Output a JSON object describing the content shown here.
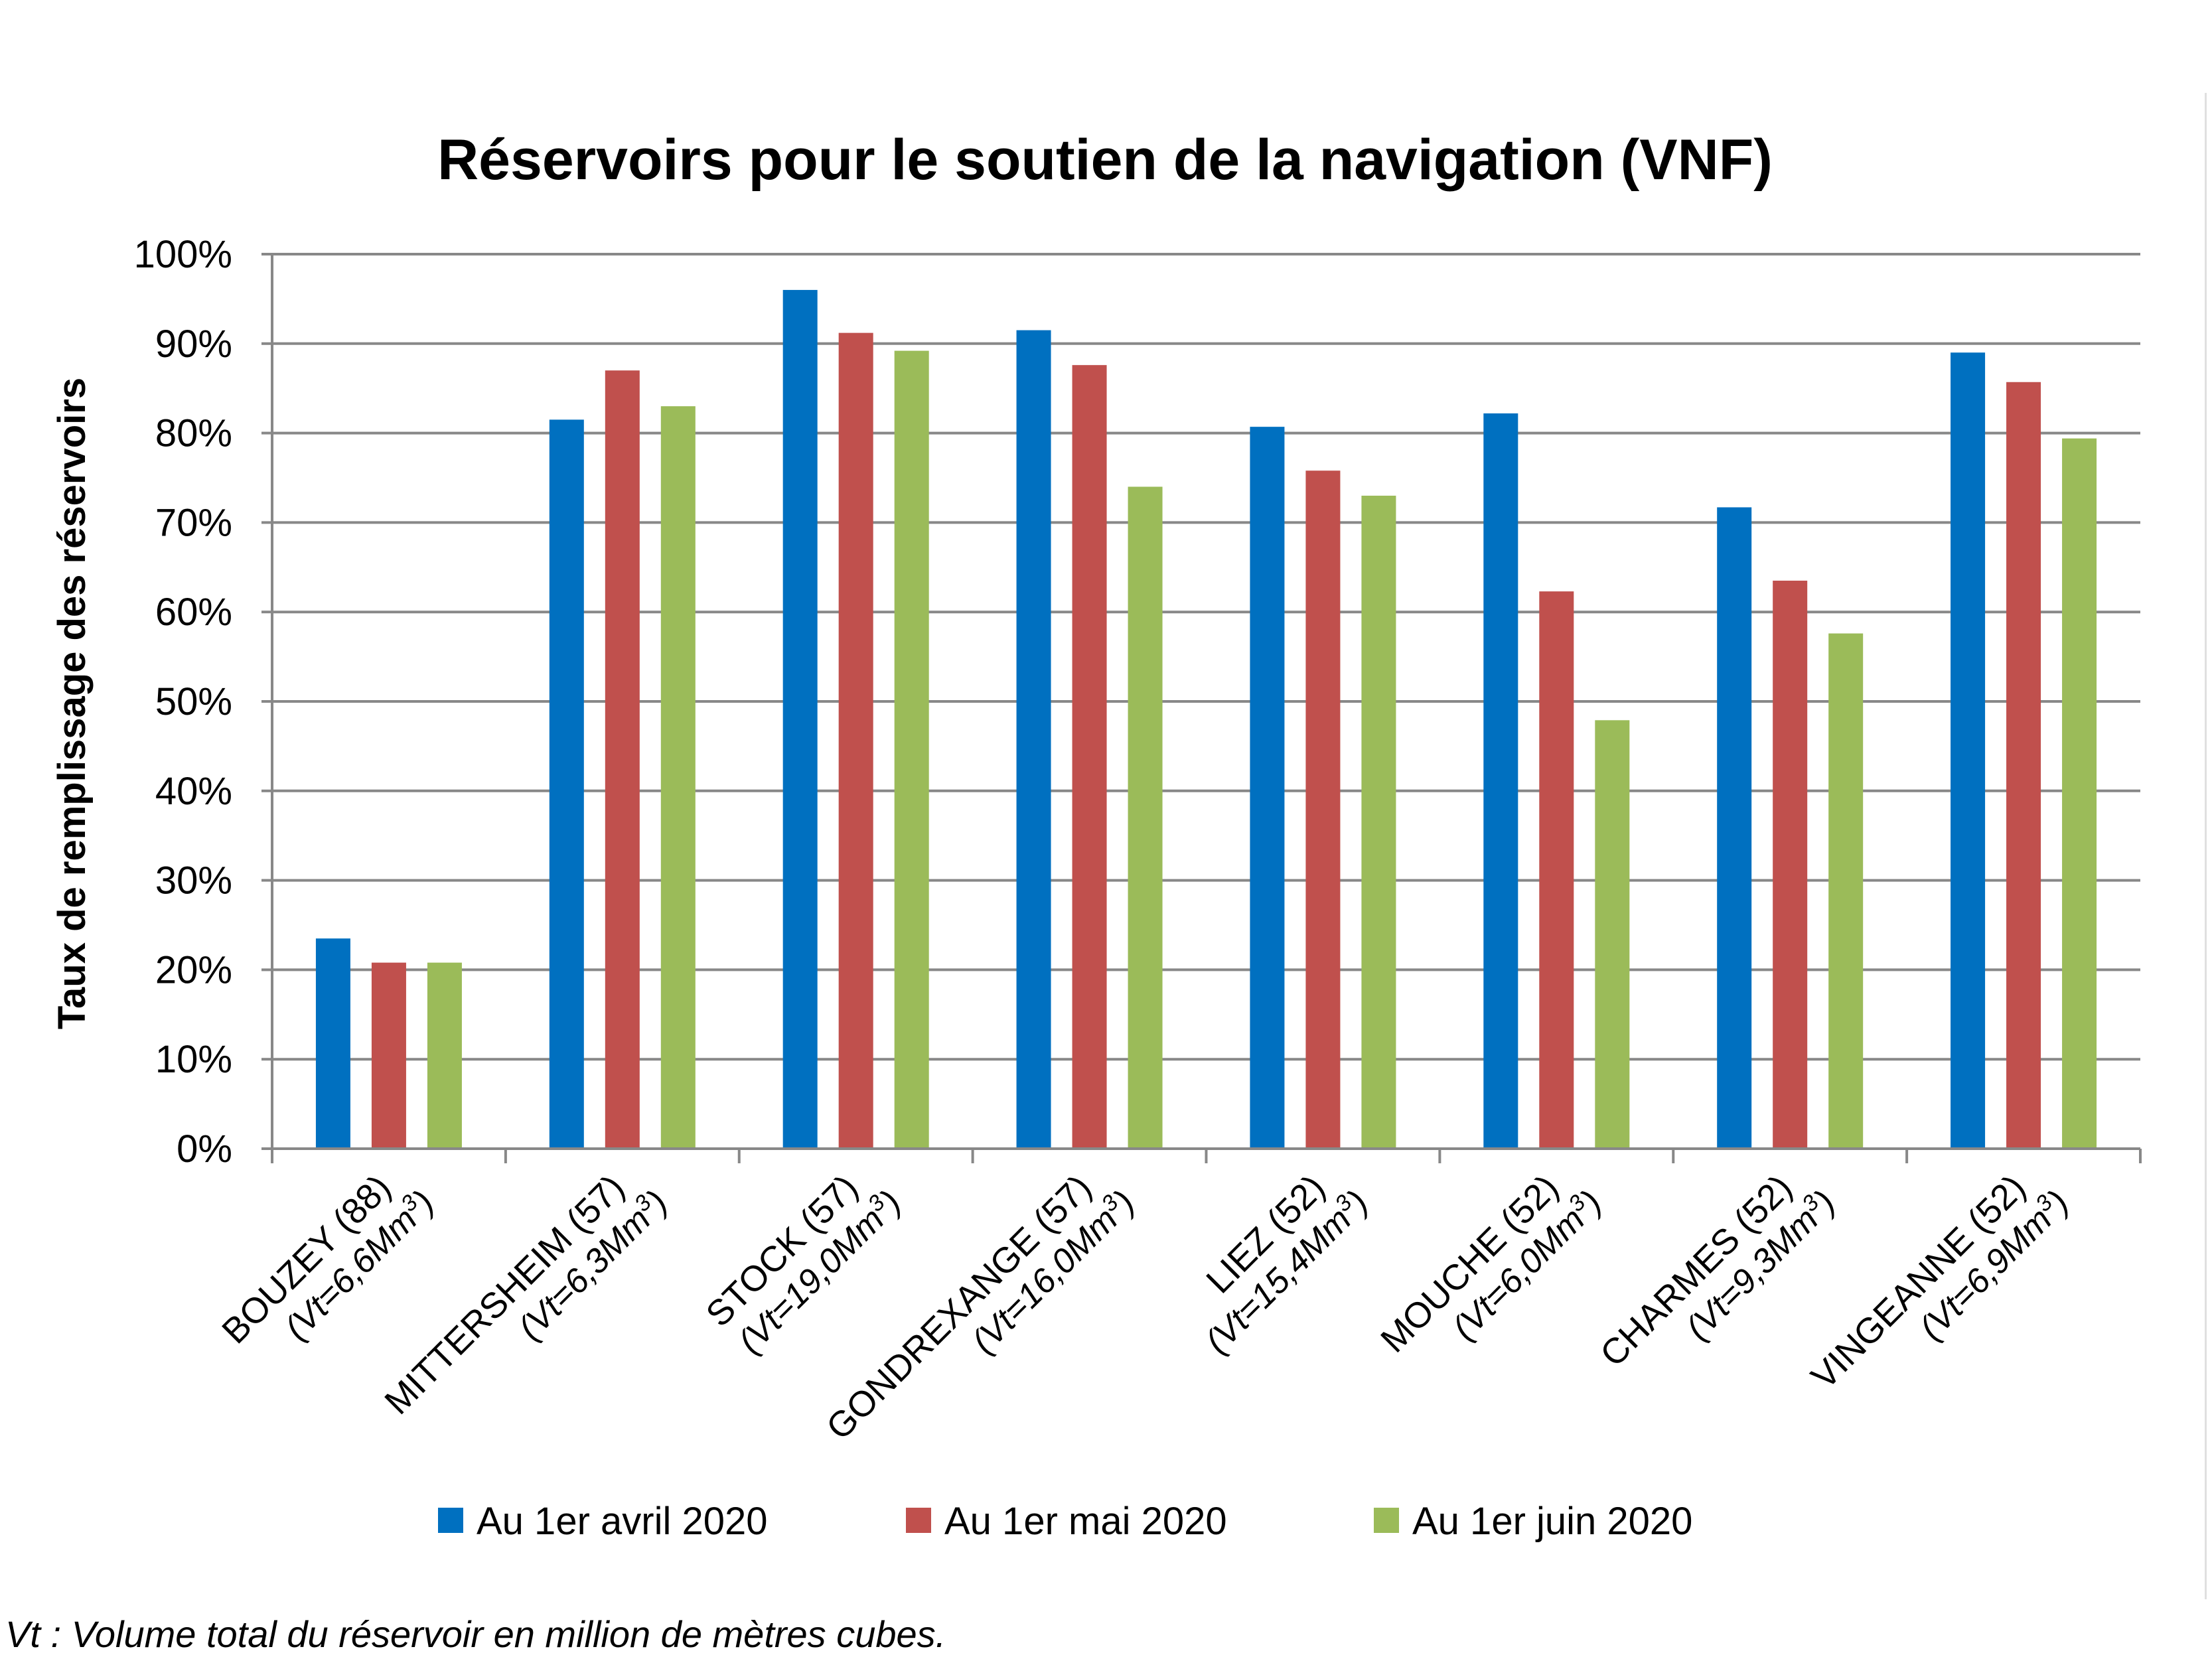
{
  "chart_data": {
    "type": "bar",
    "title": "Réservoirs pour le soutien de la navigation (VNF)",
    "ylabel": "Taux de remplissage des réservoirs",
    "xlabel": "",
    "ylim": [
      0,
      100
    ],
    "yticks": [
      "0%",
      "10%",
      "20%",
      "30%",
      "40%",
      "50%",
      "60%",
      "70%",
      "80%",
      "90%",
      "100%"
    ],
    "grid": true,
    "legend_position": "bottom",
    "categories": [
      {
        "name": "BOUZEY (88)",
        "sub": "(Vt=6,6Mm",
        "sup": "3",
        "close": ")"
      },
      {
        "name": "MITTERSHEIM (57)",
        "sub": "(Vt=6,3Mm",
        "sup": "3",
        "close": ")"
      },
      {
        "name": "STOCK (57)",
        "sub": "(Vt=19,0Mm",
        "sup": "3",
        "close": ")"
      },
      {
        "name": "GONDREXANGE (57)",
        "sub": "(Vt=16,0Mm",
        "sup": "3",
        "close": ")"
      },
      {
        "name": "LIEZ (52)",
        "sub": "(Vt=15,4Mm",
        "sup": "3",
        "close": ")"
      },
      {
        "name": "MOUCHE (52)",
        "sub": "(Vt=6,0Mm",
        "sup": "3",
        "close": ")"
      },
      {
        "name": "CHARMES (52)",
        "sub": "(Vt=9,3Mm",
        "sup": "3",
        "close": ")"
      },
      {
        "name": "VINGEANNE (52)",
        "sub": "(Vt=6,9Mm",
        "sup": "3",
        "close": ")"
      }
    ],
    "series": [
      {
        "name": "Au 1er avril 2020",
        "color": "#0070C0",
        "values": [
          23.5,
          81.5,
          96.0,
          91.5,
          80.7,
          82.2,
          71.7,
          89.0
        ]
      },
      {
        "name": "Au 1er mai 2020",
        "color": "#C0504D",
        "values": [
          20.8,
          87.0,
          91.2,
          87.6,
          75.8,
          62.3,
          63.5,
          85.7
        ]
      },
      {
        "name": "Au 1er juin 2020",
        "color": "#9BBB59",
        "values": [
          20.8,
          83.0,
          89.2,
          74.0,
          73.0,
          47.9,
          57.6,
          79.4
        ]
      }
    ]
  },
  "footnote": "Vt : Volume total du réservoir en million de mètres cubes."
}
